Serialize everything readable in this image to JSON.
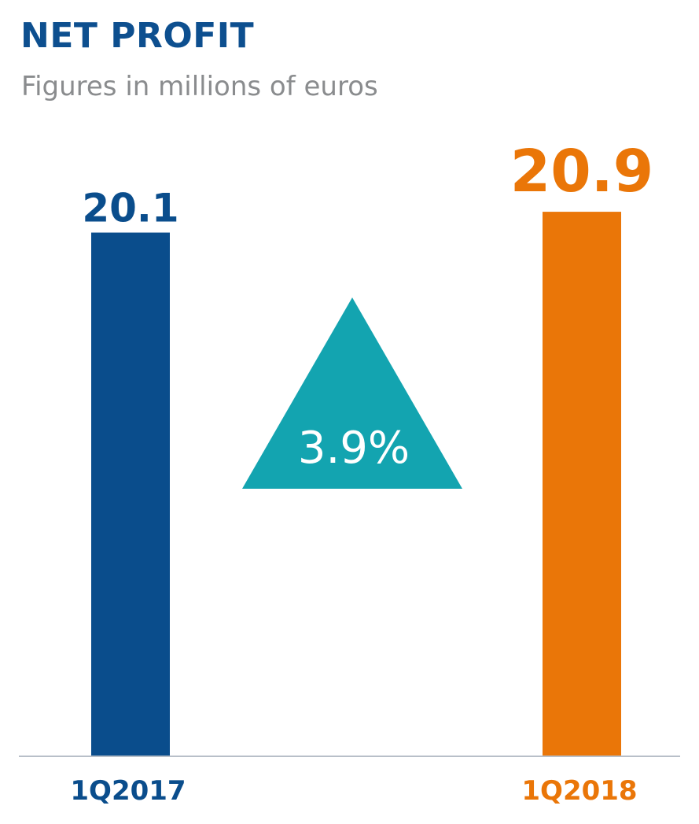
{
  "title": "NET PROFIT",
  "subtitle": "Figures in millions of euros",
  "colors": {
    "title": "#0d4f8f",
    "subtitle": "#8a8c8e",
    "bar_1q2017": "#0a4d8c",
    "bar_1q2018": "#ea7608",
    "change_triangle": "#13a4b0",
    "change_text": "#ffffff",
    "axis": "#b8bfc8"
  },
  "change": {
    "label": "3.9%",
    "direction": "up",
    "icon": "up-triangle-icon"
  },
  "chart_data": {
    "type": "bar",
    "title": "NET PROFIT",
    "subtitle": "Figures in millions of euros",
    "categories": [
      "1Q2017",
      "1Q2018"
    ],
    "values": [
      20.1,
      20.9
    ],
    "value_labels": [
      "20.1",
      "20.9"
    ],
    "ylim": [
      0,
      24.2
    ],
    "grid": false,
    "legend": "none"
  }
}
